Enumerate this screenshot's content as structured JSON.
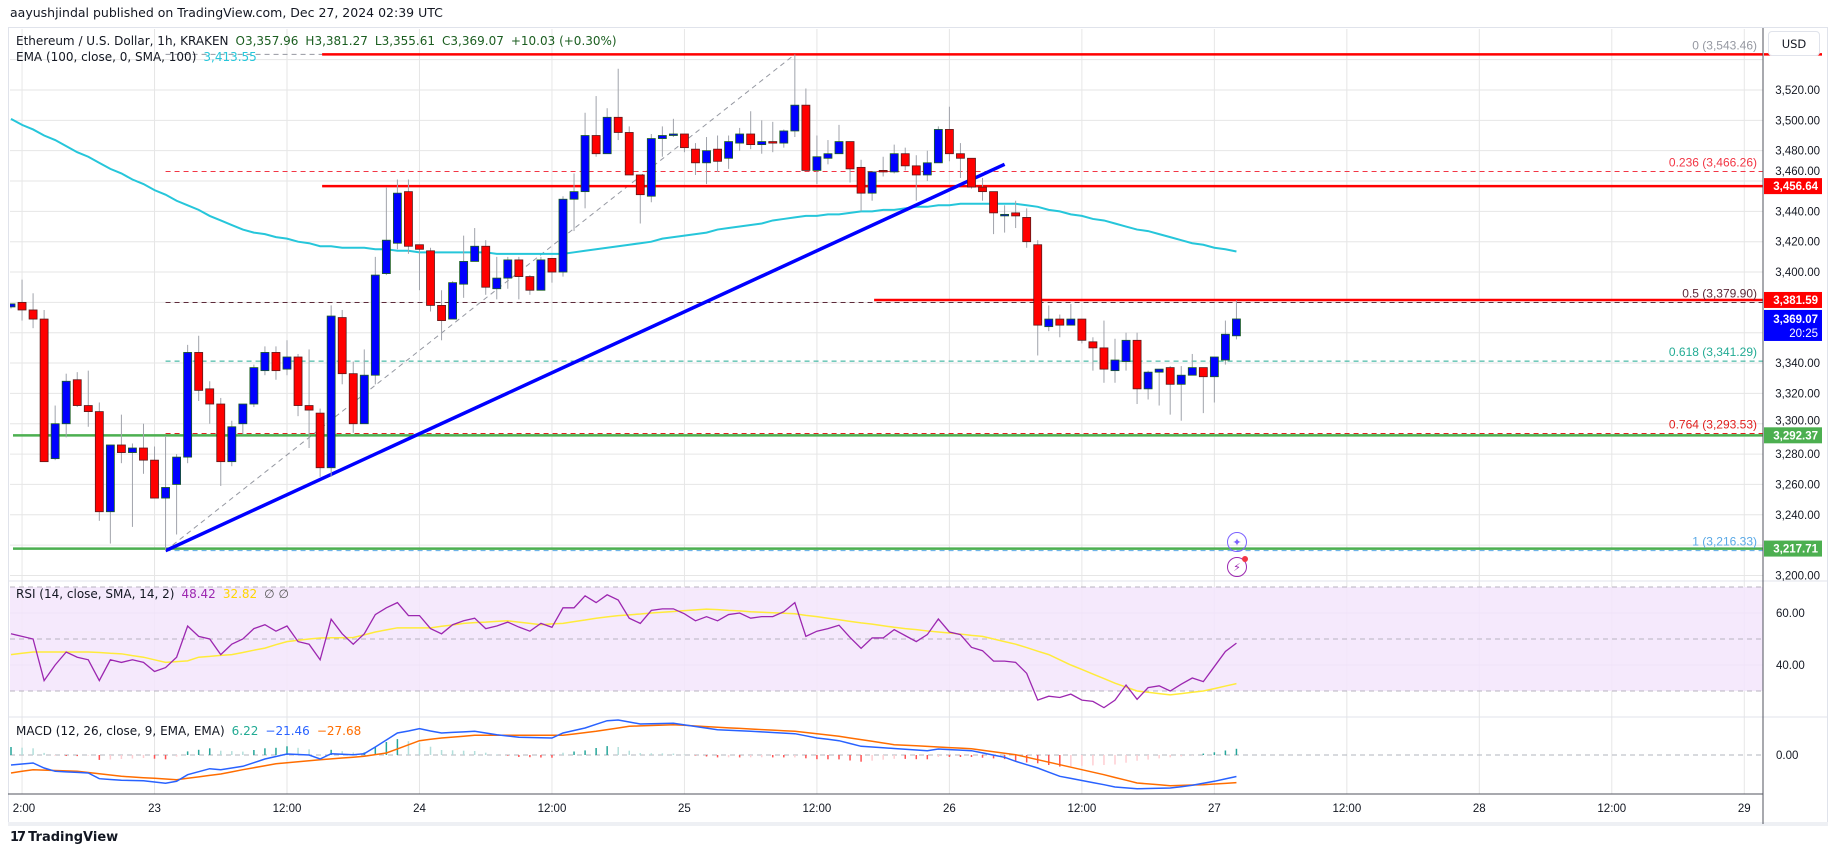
{
  "header": {
    "published": "aayushjindal published on TradingView.com, Dec 27, 2024 02:39 UTC"
  },
  "legend": {
    "symbol": "Ethereum / U.S. Dollar, 1h, KRAKEN",
    "open": "O3,357.96",
    "high": "H3,381.27",
    "low": "L3,355.61",
    "close": "C3,369.07",
    "change": "+10.03 (+0.30%)",
    "ema_label": "EMA (100, close, 0, SMA, 100)",
    "ema_value": "3,413.55"
  },
  "currency_button": "USD",
  "logo": {
    "text": "TradingView",
    "mark": "17"
  },
  "icons": {
    "star": "sparkle-icon",
    "bolt": "lightning-icon"
  },
  "colors": {
    "up": "#0000ff",
    "down": "#ff0000",
    "ema": "#26c6da",
    "rsi": "#9c27b0",
    "rsi_sma": "#ffeb3b",
    "macd": "#2962ff",
    "signal": "#ff6d00",
    "hist_up": "#26a69a",
    "hist_down": "#ff5252",
    "trendline": "#0000ff",
    "support": "#4caf50",
    "resistance": "#ff0000"
  },
  "chart_data": {
    "type": "candlestick",
    "interval": "1h",
    "ylim": [
      3198,
      3559
    ],
    "grid": true,
    "x_ticks": [
      "2:00",
      "23",
      "12:00",
      "24",
      "12:00",
      "25",
      "12:00",
      "26",
      "12:00",
      "27",
      "12:00",
      "28",
      "12:00",
      "29"
    ],
    "y_ticks": [
      "3,520.00",
      "3,500.00",
      "3,480.00",
      "3,460.00",
      "3,440.00",
      "3,420.00",
      "3,400.00",
      "3,340.00",
      "3,320.00",
      "3,300.00",
      "3,280.00",
      "3,260.00",
      "3,240.00",
      "3,200.00"
    ],
    "candles_ohlc": [
      [
        3377,
        3379,
        3376,
        3379
      ],
      [
        3380,
        3395,
        3368,
        3375
      ],
      [
        3375,
        3386,
        3363,
        3369
      ],
      [
        3369,
        3375,
        3275,
        3275
      ],
      [
        3277,
        3312,
        3276,
        3300
      ],
      [
        3300,
        3333,
        3291,
        3328
      ],
      [
        3329,
        3334,
        3311,
        3312
      ],
      [
        3312,
        3335,
        3298,
        3308
      ],
      [
        3308,
        3314,
        3236,
        3242
      ],
      [
        3242,
        3286,
        3221,
        3286
      ],
      [
        3286,
        3306,
        3274,
        3281
      ],
      [
        3281,
        3287,
        3232,
        3284
      ],
      [
        3284,
        3300,
        3267,
        3276
      ],
      [
        3276,
        3285,
        3251,
        3251
      ],
      [
        3251,
        3292,
        3216.33,
        3258
      ],
      [
        3260,
        3280,
        3227,
        3278
      ],
      [
        3278,
        3352,
        3274,
        3347
      ],
      [
        3347,
        3358,
        3315,
        3322
      ],
      [
        3323,
        3328,
        3300,
        3313
      ],
      [
        3313,
        3317,
        3259,
        3275
      ],
      [
        3275,
        3302,
        3272,
        3298
      ],
      [
        3300,
        3313,
        3293,
        3313
      ],
      [
        3313,
        3339,
        3311,
        3337
      ],
      [
        3335,
        3351,
        3332,
        3347
      ],
      [
        3347,
        3351,
        3329,
        3335
      ],
      [
        3336,
        3355,
        3332,
        3344
      ],
      [
        3344,
        3346,
        3305,
        3312
      ],
      [
        3312,
        3349,
        3284,
        3309
      ],
      [
        3307,
        3310,
        3265,
        3271
      ],
      [
        3271,
        3378,
        3265,
        3371
      ],
      [
        3370,
        3375,
        3326,
        3333
      ],
      [
        3333,
        3341,
        3294,
        3300
      ],
      [
        3300,
        3349,
        3300,
        3332
      ],
      [
        3332,
        3410,
        3326,
        3398
      ],
      [
        3399,
        3456,
        3398,
        3421
      ],
      [
        3419,
        3461,
        3415,
        3452
      ],
      [
        3453,
        3461,
        3412,
        3417
      ],
      [
        3418,
        3418,
        3388,
        3415
      ],
      [
        3414,
        3416,
        3374,
        3378
      ],
      [
        3378,
        3388,
        3355,
        3368
      ],
      [
        3369,
        3394,
        3369,
        3393
      ],
      [
        3392,
        3424,
        3383,
        3407
      ],
      [
        3407,
        3429,
        3407,
        3417
      ],
      [
        3417,
        3421,
        3385,
        3390
      ],
      [
        3389,
        3410,
        3382,
        3396
      ],
      [
        3396,
        3410,
        3389,
        3408
      ],
      [
        3408,
        3410,
        3382,
        3397
      ],
      [
        3397,
        3398,
        3385,
        3388
      ],
      [
        3388,
        3410,
        3388,
        3408
      ],
      [
        3409,
        3409,
        3393,
        3400
      ],
      [
        3400,
        3450,
        3397,
        3448
      ],
      [
        3448,
        3465,
        3427,
        3453
      ],
      [
        3453,
        3505,
        3442,
        3490
      ],
      [
        3490,
        3516,
        3476,
        3478
      ],
      [
        3478,
        3508,
        3478,
        3502
      ],
      [
        3502,
        3534,
        3487,
        3492
      ],
      [
        3492,
        3496,
        3464,
        3464
      ],
      [
        3464,
        3464,
        3432,
        3451
      ],
      [
        3450,
        3491,
        3446,
        3488
      ],
      [
        3488,
        3496,
        3476,
        3490
      ],
      [
        3491,
        3501,
        3489,
        3491
      ],
      [
        3491,
        3491,
        3479,
        3482
      ],
      [
        3481,
        3485,
        3464,
        3472
      ],
      [
        3472,
        3489,
        3458,
        3480
      ],
      [
        3481,
        3490,
        3466,
        3473
      ],
      [
        3475,
        3490,
        3468,
        3486
      ],
      [
        3485,
        3495,
        3480,
        3491
      ],
      [
        3491,
        3506,
        3481,
        3484
      ],
      [
        3484,
        3500,
        3478,
        3486
      ],
      [
        3486,
        3499,
        3479,
        3485
      ],
      [
        3485,
        3494,
        3482,
        3493
      ],
      [
        3493,
        3543.46,
        3489,
        3510
      ],
      [
        3510,
        3521,
        3467,
        3467
      ],
      [
        3467,
        3490,
        3458,
        3476
      ],
      [
        3475,
        3487,
        3471,
        3478
      ],
      [
        3478,
        3497,
        3478,
        3486
      ],
      [
        3486,
        3486,
        3459,
        3468
      ],
      [
        3469,
        3474,
        3440,
        3452
      ],
      [
        3452,
        3466,
        3447,
        3466
      ],
      [
        3467,
        3476,
        3463,
        3466
      ],
      [
        3466,
        3484,
        3465,
        3478
      ],
      [
        3478,
        3482,
        3467,
        3470
      ],
      [
        3470,
        3477,
        3447,
        3464
      ],
      [
        3464,
        3480,
        3460,
        3472
      ],
      [
        3472,
        3496,
        3472,
        3494
      ],
      [
        3494,
        3509,
        3473,
        3478
      ],
      [
        3478,
        3485,
        3462,
        3475
      ],
      [
        3475,
        3475,
        3455,
        3456
      ],
      [
        3456,
        3462,
        3447,
        3453
      ],
      [
        3453,
        3453,
        3425,
        3439
      ],
      [
        3438,
        3444,
        3426,
        3438
      ],
      [
        3439,
        3447,
        3429,
        3437
      ],
      [
        3436,
        3442,
        3416,
        3420
      ],
      [
        3418,
        3421,
        3345,
        3365
      ],
      [
        3364,
        3378,
        3361,
        3369
      ],
      [
        3369,
        3372,
        3357,
        3365
      ],
      [
        3365,
        3379,
        3365,
        3369
      ],
      [
        3369,
        3369,
        3353,
        3355
      ],
      [
        3354,
        3357,
        3335,
        3350
      ],
      [
        3350,
        3368,
        3327,
        3336
      ],
      [
        3335,
        3356,
        3327,
        3342
      ],
      [
        3341,
        3360,
        3335,
        3355
      ],
      [
        3355,
        3360,
        3313,
        3323
      ],
      [
        3323,
        3335,
        3316,
        3334
      ],
      [
        3334,
        3336,
        3312,
        3336
      ],
      [
        3337,
        3338,
        3306,
        3326
      ],
      [
        3326,
        3338,
        3302,
        3332
      ],
      [
        3332,
        3346,
        3332,
        3337
      ],
      [
        3337,
        3337,
        3307,
        3331
      ],
      [
        3331,
        3344,
        3314,
        3344
      ],
      [
        3342,
        3368,
        3339,
        3359
      ],
      [
        3357.96,
        3381.27,
        3355.61,
        3369.07
      ]
    ],
    "ema100": [
      3501,
      3497,
      3494,
      3490,
      3487,
      3483,
      3479,
      3476,
      3472,
      3468,
      3465,
      3461,
      3458,
      3454,
      3451,
      3447,
      3444,
      3441,
      3437,
      3434,
      3431,
      3428,
      3426,
      3425,
      3423,
      3422,
      3420,
      3419,
      3417,
      3417,
      3416,
      3416,
      3416,
      3415,
      3415,
      3414,
      3414,
      3413,
      3413,
      3413,
      3413,
      3413,
      3413,
      3413,
      3412,
      3412,
      3412,
      3412,
      3412,
      3412,
      3412,
      3413,
      3414,
      3415,
      3416,
      3417,
      3418,
      3419,
      3420,
      3422,
      3423,
      3424,
      3425,
      3426,
      3428,
      3429,
      3430,
      3431,
      3432,
      3434,
      3435,
      3436,
      3437,
      3437,
      3438,
      3438,
      3439,
      3440,
      3440,
      3441,
      3441,
      3442,
      3443,
      3443,
      3444,
      3444,
      3445,
      3445,
      3445,
      3445,
      3445,
      3445,
      3444,
      3443,
      3441,
      3440,
      3438,
      3437,
      3435,
      3434,
      3432,
      3430,
      3428,
      3427,
      3425,
      3423,
      3421,
      3419,
      3418,
      3416,
      3415,
      3413.55
    ],
    "horizontal_lines": [
      {
        "price": 3543.46,
        "color": "#ff0000",
        "from_candle": 28
      },
      {
        "price": 3456.64,
        "color": "#ff0000",
        "from_candle": 28,
        "label": "3,456.64"
      },
      {
        "price": 3381.59,
        "color": "#ff0000",
        "from_candle": 78,
        "label": "3,381.59"
      },
      {
        "price": 3292.37,
        "color": "#4caf50",
        "from_candle": 0,
        "label": "3,292.37"
      },
      {
        "price": 3217.71,
        "color": "#4caf50",
        "from_candle": 0,
        "label": "3,217.71"
      }
    ],
    "last_price": {
      "label": "3,369.07",
      "countdown": "20:25",
      "price": 3369.07
    },
    "trendline": {
      "from": [
        14,
        3216.33
      ],
      "to": [
        90,
        3471
      ],
      "color": "#0000ff"
    },
    "fib_retracement": {
      "from": [
        14,
        3216.33
      ],
      "to": [
        71,
        3543.46
      ],
      "levels": [
        {
          "label": "0 (3,543.46)",
          "price": 3543.46,
          "color": "#9598a1"
        },
        {
          "label": "0.236 (3,466.26)",
          "price": 3466.26,
          "color": "#f23645"
        },
        {
          "label": "0.5 (3,379.90)",
          "price": 3379.9,
          "color": "#5d2b3a"
        },
        {
          "label": "0.618 (3,341.29)",
          "price": 3341.29,
          "color": "#22ab94"
        },
        {
          "label": "0.764 (3,293.53)",
          "price": 3293.53,
          "color": "#e0201e"
        },
        {
          "label": "1 (3,216.33)",
          "price": 3216.33,
          "color": "#5aa9e6"
        }
      ]
    },
    "rsi": {
      "label": "RSI (14, close, SMA, 14, 2)",
      "value": "48.42",
      "sma_value": "32.82",
      "extra": "∅  ∅",
      "ylim": [
        20,
        71.5
      ],
      "y_ticks": [
        "60.00",
        "40.00"
      ],
      "bands": [
        70,
        50,
        30
      ],
      "values": [
        52,
        51,
        50,
        34,
        40,
        45,
        43,
        42,
        34,
        42,
        41,
        42,
        41,
        37.5,
        39,
        43,
        55,
        51,
        50,
        44,
        48,
        50,
        54,
        55.5,
        53,
        55,
        49,
        48,
        42,
        57.6,
        52,
        48,
        52,
        59.4,
        62,
        64,
        59,
        59,
        54,
        52,
        55.5,
        57,
        58,
        54,
        55,
        56.5,
        54.6,
        53,
        56,
        54.5,
        62,
        62,
        66.6,
        64,
        67,
        65,
        58,
        56,
        61,
        61.6,
        61.6,
        59.7,
        57,
        58.6,
        57,
        59.4,
        60,
        58,
        58.6,
        58.6,
        60.5,
        64,
        51,
        53,
        54,
        55.3,
        50.6,
        46.4,
        50.4,
        50.4,
        53.6,
        51.3,
        49,
        51.7,
        57.7,
        52.7,
        51.7,
        46.8,
        45.5,
        41.5,
        41.5,
        41,
        36.8,
        26.5,
        28,
        27.5,
        28.8,
        26.5,
        26,
        23.6,
        26.5,
        32.3,
        26.8,
        31.3,
        32,
        30,
        32.6,
        35,
        33.6,
        39.4,
        45.2,
        48.42
      ],
      "sma": [
        44,
        44.5,
        45,
        45,
        45,
        45,
        45,
        45,
        44.8,
        44.5,
        44.3,
        43.6,
        43,
        42,
        41,
        41.3,
        41.6,
        43,
        43.3,
        43.7,
        44,
        44.8,
        45.7,
        46.5,
        47.8,
        49,
        49.5,
        50,
        50.4,
        50.5,
        50.5,
        50.6,
        51.6,
        52.7,
        53.5,
        54.3,
        54.3,
        54.3,
        54.3,
        54.9,
        55.4,
        56,
        56.3,
        56.5,
        56.8,
        57,
        56.5,
        56,
        55.5,
        55.8,
        56,
        56.7,
        57.3,
        58,
        58.5,
        59,
        59.3,
        59.6,
        60,
        60.3,
        60.6,
        60.9,
        61.2,
        61.5,
        61.3,
        61,
        60.8,
        60.5,
        60.3,
        60.1,
        59.9,
        59.7,
        59.1,
        58.6,
        58,
        57.4,
        56.8,
        56.2,
        55.7,
        55.1,
        54.5,
        54,
        53.6,
        53.1,
        52.7,
        52.3,
        51.9,
        51.4,
        51,
        50,
        49,
        48,
        46.7,
        45.3,
        44,
        42,
        40,
        38.3,
        36.5,
        34.8,
        33,
        31.5,
        30,
        29.5,
        29,
        28.5,
        29,
        29.5,
        30,
        30.9,
        31.9,
        32.82
      ]
    },
    "macd": {
      "label": "MACD (12, 26, close, 9, EMA, EMA)",
      "hist_value": "6.22",
      "macd_value": "−21.46",
      "signal_value": "−27.68",
      "ylim": [
        -39,
        38
      ],
      "y_ticks": [
        "0.00"
      ],
      "macd": [
        -10,
        -9,
        -8,
        -13,
        -16.3,
        -16.9,
        -17.4,
        -18,
        -23.7,
        -24.5,
        -25.3,
        -25.5,
        -25.7,
        -27,
        -28.3,
        -26.3,
        -19.7,
        -16.7,
        -13.7,
        -14.7,
        -13,
        -11.3,
        -7.7,
        -4,
        -1.5,
        1,
        0.5,
        0,
        -4,
        1.3,
        0.8,
        0.3,
        1.3,
        8,
        15,
        22,
        24,
        26.3,
        24,
        22,
        22.6,
        23.1,
        23.7,
        22,
        20.3,
        19,
        17.7,
        17.5,
        17.2,
        17,
        22,
        24.5,
        27,
        30.7,
        34.3,
        35,
        33,
        31,
        31.2,
        31.5,
        31.7,
        30.1,
        28.5,
        26.9,
        25.3,
        24.8,
        24.2,
        23.7,
        23.1,
        22.5,
        21.9,
        21.3,
        19.2,
        17,
        15.7,
        14.3,
        11.5,
        8.7,
        8,
        7.3,
        6.5,
        5.8,
        5,
        4.3,
        6,
        5.4,
        4.9,
        4.3,
        2.1,
        -0.1,
        -2.3,
        -6.3,
        -9.7,
        -13,
        -17.2,
        -21.3,
        -23.4,
        -25.5,
        -27.6,
        -29.7,
        -32,
        -32.9,
        -33.7,
        -33.5,
        -33.2,
        -33,
        -31.7,
        -30.3,
        -28.3,
        -26.3,
        -23.9,
        -21.46
      ],
      "signal": [
        -18,
        -16.3,
        -14.7,
        -15.1,
        -15.5,
        -15.9,
        -16.3,
        -17.5,
        -18.8,
        -20,
        -21.3,
        -22,
        -22.7,
        -23.3,
        -24,
        -24.7,
        -23.3,
        -21.9,
        -20.4,
        -19,
        -16.9,
        -14.7,
        -12.7,
        -10.7,
        -8.7,
        -7.7,
        -6.7,
        -5.7,
        -4.7,
        -3.9,
        -3,
        -2.2,
        -1.3,
        0.4,
        2,
        6.1,
        10.2,
        14.3,
        15.7,
        17,
        17.9,
        18.8,
        19.7,
        19.7,
        19.7,
        19.7,
        19.7,
        19.7,
        19.7,
        19.7,
        19.7,
        21,
        22.4,
        23.7,
        25.4,
        27,
        28.7,
        29.1,
        29.5,
        29.9,
        30.3,
        29.7,
        29,
        28.4,
        27.7,
        27.1,
        26.6,
        26,
        25.4,
        24.9,
        24.3,
        23.7,
        22.5,
        21.2,
        20,
        18.7,
        17,
        15.4,
        13.7,
        12,
        10.3,
        9.7,
        9.2,
        8.6,
        8,
        7.4,
        6.9,
        6.3,
        4.8,
        3.3,
        1.8,
        0.3,
        -2.2,
        -4.7,
        -7.2,
        -9.7,
        -12.2,
        -14.7,
        -17.2,
        -19.7,
        -22.5,
        -25.2,
        -28,
        -28.9,
        -29.8,
        -30.7,
        -30.4,
        -30,
        -29.7,
        -29,
        -28.4,
        -27.68
      ]
    }
  }
}
